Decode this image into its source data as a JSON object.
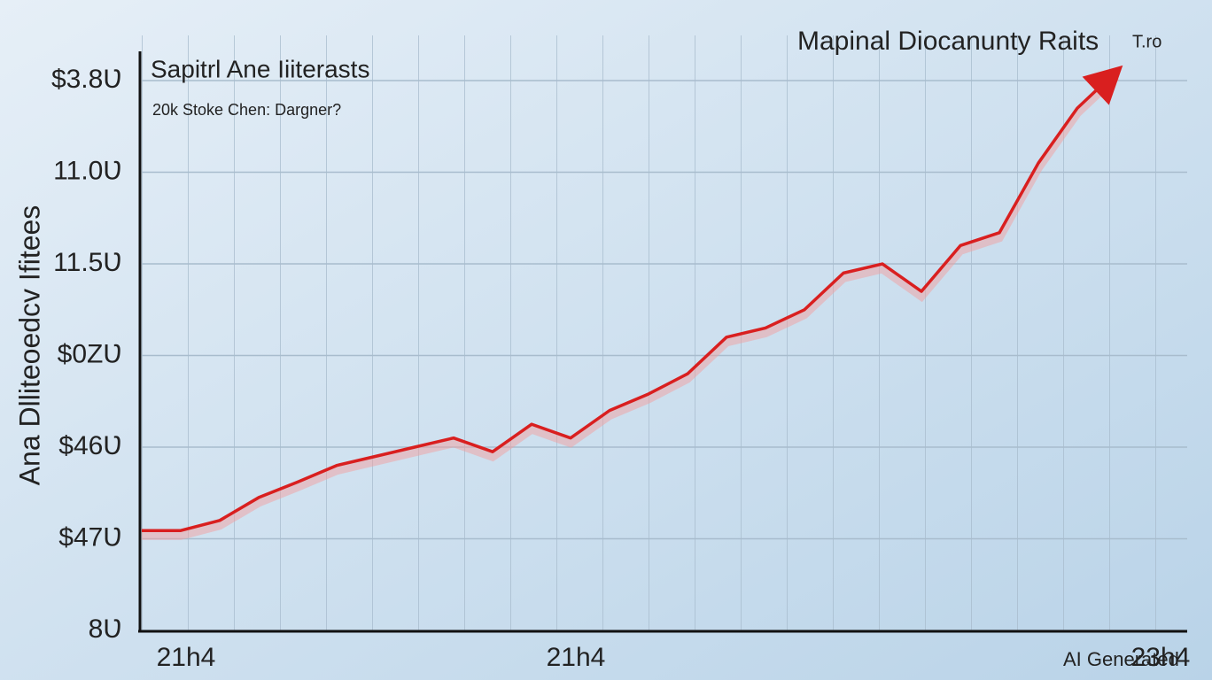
{
  "chart_data": {
    "type": "line",
    "title": "Mapinal Diocanunty Raits",
    "title_note": "T.ro",
    "subtitle": "Sapitrl Ane Iiiterasts",
    "caption": "20k Stoke Chen: Dargner?",
    "y_label": "Ana Dlliteoedcv Ifitees",
    "watermark": "AI Generated",
    "categories": [
      null,
      "21h4",
      null,
      null,
      null,
      null,
      null,
      null,
      null,
      null,
      null,
      "21h4",
      null,
      null,
      null,
      null,
      null,
      null,
      null,
      null,
      null,
      null,
      null,
      null,
      null,
      null,
      "23h4"
    ],
    "series": [
      {
        "name": null,
        "color": "#d91f1f",
        "values": [
          1.09,
          1.09,
          1.2,
          1.45,
          1.62,
          1.8,
          1.9,
          2.0,
          2.1,
          1.95,
          2.25,
          2.1,
          2.4,
          2.58,
          2.8,
          3.2,
          3.3,
          3.5,
          3.9,
          4.0,
          3.7,
          4.2,
          4.34,
          5.1,
          5.7,
          6.1,
          null
        ]
      }
    ],
    "ylim": [
      0,
      6.3
    ],
    "yticks": [
      {
        "value": 0,
        "label": "8Ʋ"
      },
      {
        "value": 1,
        "label": "$47Ʋ"
      },
      {
        "value": 2,
        "label": "$46Ʋ"
      },
      {
        "value": 3,
        "label": "$0ZƲ"
      },
      {
        "value": 4,
        "label": "11.5Ʋ"
      },
      {
        "value": 5,
        "label": "11.0Ʋ"
      },
      {
        "value": 6,
        "label": "$3.8Ʋ"
      }
    ],
    "grid": true
  }
}
